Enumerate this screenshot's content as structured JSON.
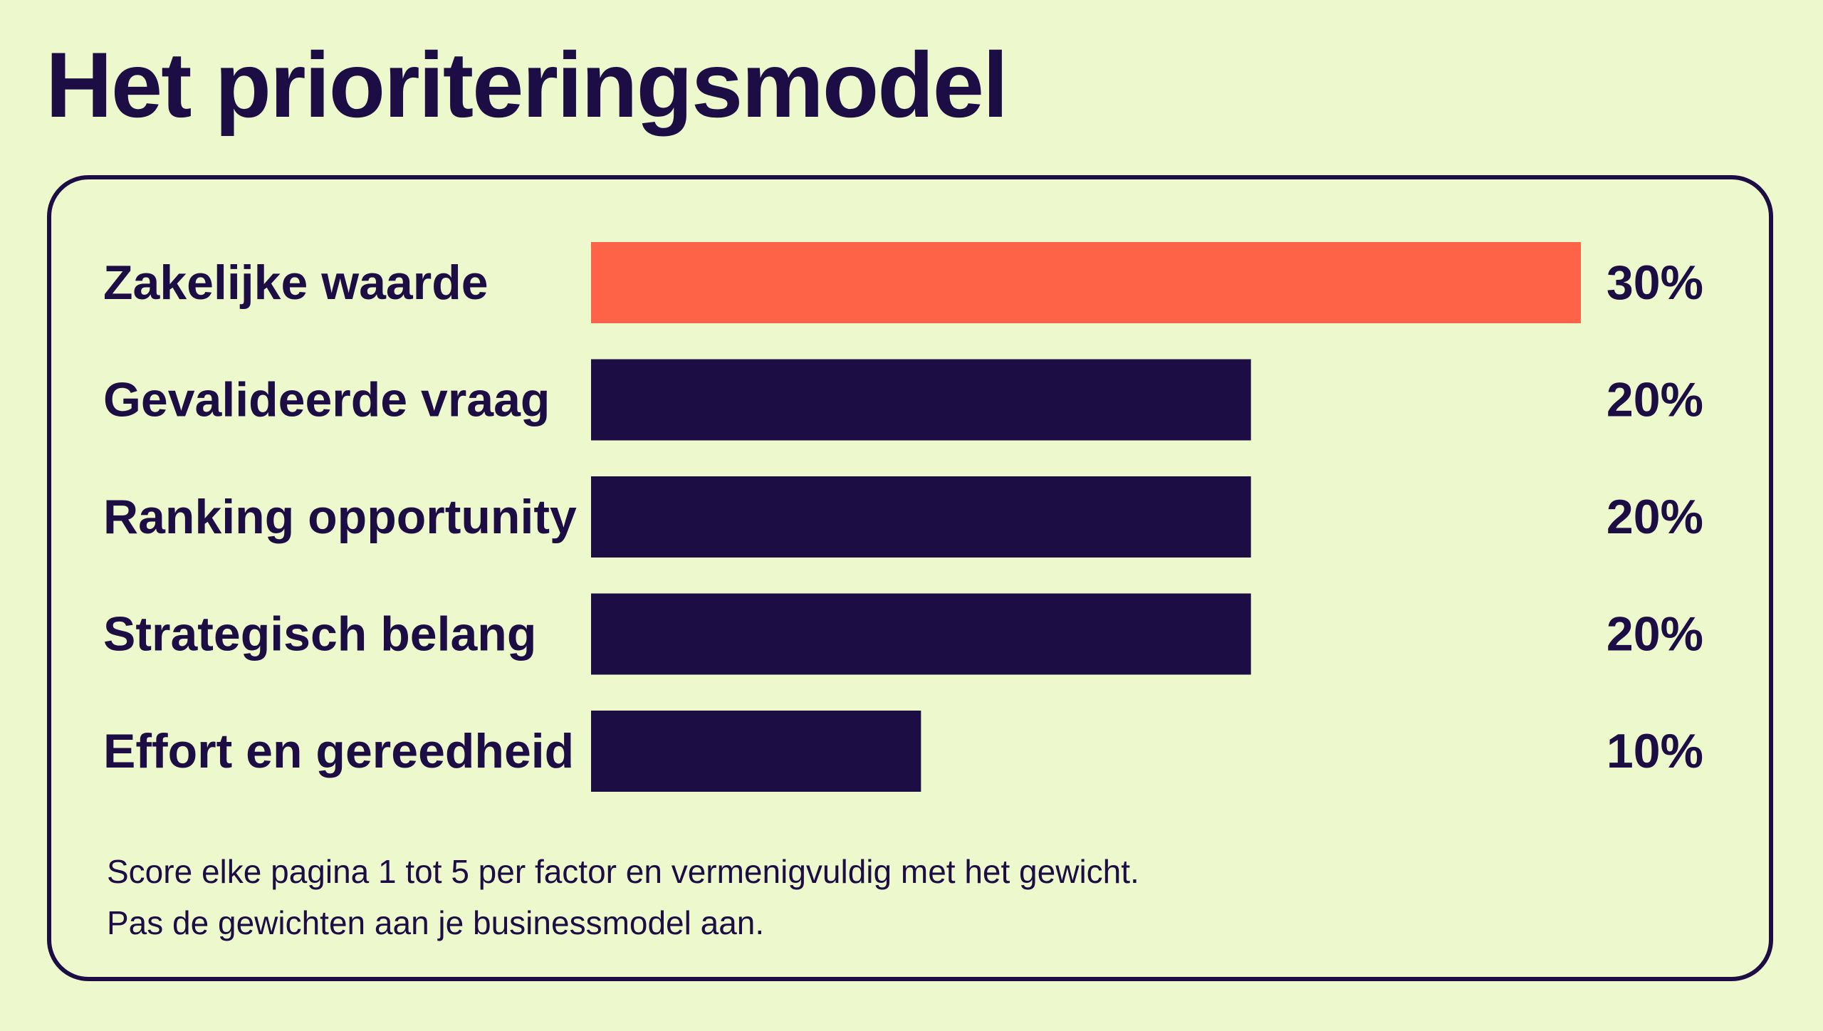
{
  "title": "Het prioriteringsmodel",
  "chart_data": {
    "type": "bar",
    "orientation": "horizontal",
    "categories": [
      "Zakelijke waarde",
      "Gevalideerde vraag",
      "Ranking opportunity",
      "Strategisch belang",
      "Effort en gereedheid"
    ],
    "values": [
      30,
      20,
      20,
      20,
      10
    ],
    "value_labels": [
      "30%",
      "20%",
      "20%",
      "20%",
      "10%"
    ],
    "unit": "%",
    "xlim": [
      0,
      30
    ],
    "grid": false,
    "legend": "none",
    "highlight_index": 0
  },
  "colors": {
    "background": "#eef8cd",
    "primary": "#1c0e45",
    "highlight": "#ff6347"
  },
  "footnote": {
    "line1": "Score elke pagina 1 tot 5 per factor en vermenigvuldig met het gewicht.",
    "line2": "Pas de gewichten aan je businessmodel aan."
  }
}
